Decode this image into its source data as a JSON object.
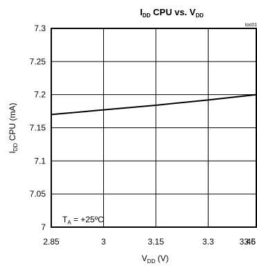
{
  "chart_data": {
    "type": "line",
    "title_main": "I",
    "title_sub": "DD",
    "title_mid": " CPU vs. V",
    "title_sub2": "DD",
    "corner_label": "toc01",
    "xlabel_main": "V",
    "xlabel_sub": "DD",
    "xlabel_rest": " (V)",
    "ylabel_main": "I",
    "ylabel_sub": "DD",
    "ylabel_rest": " CPU (mA)",
    "annotation_main": "T",
    "annotation_sub": "A",
    "annotation_rest": " = +25ºC",
    "xlim": [
      2.85,
      3.6
    ],
    "ylim": [
      7.0,
      7.3
    ],
    "x_ticks": [
      2.85,
      3.0,
      3.15,
      3.3,
      3.45,
      3.6
    ],
    "x_tick_labels": [
      "2.85",
      "3",
      "3.15",
      "3.3",
      "3.45",
      "3.6"
    ],
    "y_ticks": [
      7.0,
      7.05,
      7.1,
      7.15,
      7.2,
      7.25,
      7.3
    ],
    "y_tick_labels": [
      "7",
      "7.05",
      "7.1",
      "7.15",
      "7.2",
      "7.25",
      "7.3"
    ],
    "grid": true,
    "series": [
      {
        "x": [
          2.85,
          3.0,
          3.15,
          3.3,
          3.45,
          3.6,
          3.65
        ],
        "values": [
          7.17,
          7.177,
          7.184,
          7.192,
          7.2,
          7.209,
          7.213
        ],
        "color": "#000000"
      }
    ]
  }
}
